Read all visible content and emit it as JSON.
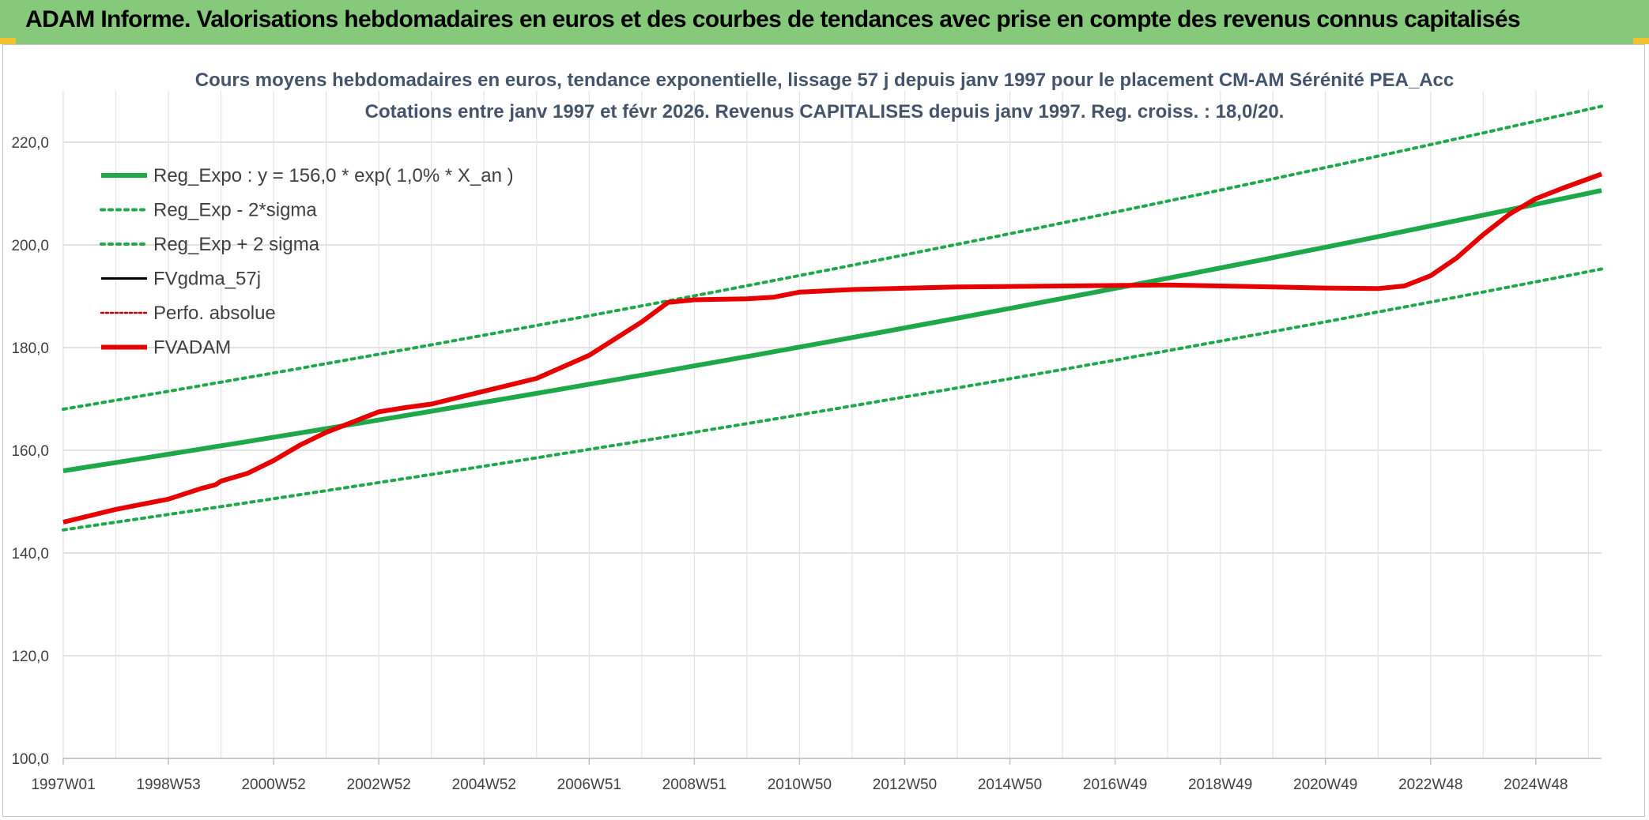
{
  "banner": {
    "title": "ADAM Informe. Valorisations hebdomadaires en euros et des courbes de tendances avec prise en compte des revenus connus capitalisés",
    "color": "#86c97a"
  },
  "chart_data": {
    "type": "line",
    "title": "Cours moyens hebdomadaires en euros, tendance exponentielle, lissage 57 j depuis janv 1997 pour le placement CM-AM Sérénité PEA_Acc",
    "subtitle": "Cotations entre janv 1997 et févr 2026. Revenus CAPITALISES depuis janv 1997. Reg. croiss. : 18,0/20.",
    "xlabel": "",
    "ylabel": "",
    "xlim": [
      1997.0,
      2026.25
    ],
    "ylim": [
      100,
      230
    ],
    "y_ticks": [
      100,
      120,
      140,
      160,
      180,
      200,
      220
    ],
    "y_tick_labels": [
      "100,0",
      "120,0",
      "140,0",
      "160,0",
      "180,0",
      "200,0",
      "220,0"
    ],
    "x_ticks": [
      1997.0,
      1999.0,
      2001.0,
      2003.0,
      2005.0,
      2007.0,
      2009.0,
      2011.0,
      2013.0,
      2015.0,
      2017.0,
      2019.0,
      2021.0,
      2023.0,
      2025.0
    ],
    "x_tick_labels": [
      "1997W01",
      "1998W53",
      "2000W52",
      "2002W52",
      "2004W52",
      "2006W51",
      "2008W51",
      "2010W50",
      "2012W50",
      "2014W50",
      "2016W49",
      "2018W49",
      "2020W49",
      "2022W48",
      "2024W48"
    ],
    "grid": true,
    "legend_position": "top-left",
    "series": [
      {
        "name": "Reg_Expo : y = 156,0 * exp( 1,0% *  X_an )",
        "style": "solid-thick",
        "color": "#1ea84a",
        "x": [
          1997.0,
          2026.25
        ],
        "y": [
          156.0,
          210.6
        ]
      },
      {
        "name": "Reg_Exp - 2*sigma",
        "style": "dotted",
        "color": "#1ea84a",
        "x": [
          1997.0,
          2026.25
        ],
        "y": [
          144.5,
          195.3
        ]
      },
      {
        "name": "Reg_Exp + 2 sigma",
        "style": "dotted",
        "color": "#1ea84a",
        "x": [
          1997.0,
          2026.25
        ],
        "y": [
          168.0,
          227.0
        ]
      },
      {
        "name": "FVgdma_57j",
        "style": "solid",
        "color": "#000000",
        "x": [],
        "y": []
      },
      {
        "name": "Perfo. absolue",
        "style": "dotted",
        "color": "#c00000",
        "x": [],
        "y": []
      },
      {
        "name": "FVADAM",
        "style": "solid-thick",
        "color": "#e60000",
        "x": [
          1997.0,
          1998.0,
          1999.0,
          1999.6,
          1999.9,
          2000.0,
          2000.5,
          2001.0,
          2001.5,
          2002.0,
          2002.5,
          2003.0,
          2003.5,
          2004.0,
          2005.0,
          2006.0,
          2007.0,
          2008.0,
          2008.5,
          2009.0,
          2010.0,
          2010.5,
          2011.0,
          2012.0,
          2014.0,
          2016.0,
          2017.0,
          2018.0,
          2019.0,
          2020.0,
          2021.0,
          2022.0,
          2022.5,
          2023.0,
          2023.5,
          2024.0,
          2024.5,
          2025.0,
          2025.5,
          2026.25
        ],
        "y": [
          146.0,
          148.5,
          150.5,
          152.5,
          153.3,
          154.0,
          155.5,
          158.0,
          161.0,
          163.5,
          165.5,
          167.5,
          168.3,
          169.0,
          171.5,
          174.0,
          178.5,
          185.0,
          188.8,
          189.3,
          189.5,
          189.8,
          190.8,
          191.3,
          191.8,
          192.0,
          192.1,
          192.2,
          192.0,
          191.8,
          191.6,
          191.5,
          192.0,
          194.0,
          197.5,
          202.0,
          206.0,
          209.0,
          211.0,
          213.8
        ]
      }
    ]
  }
}
